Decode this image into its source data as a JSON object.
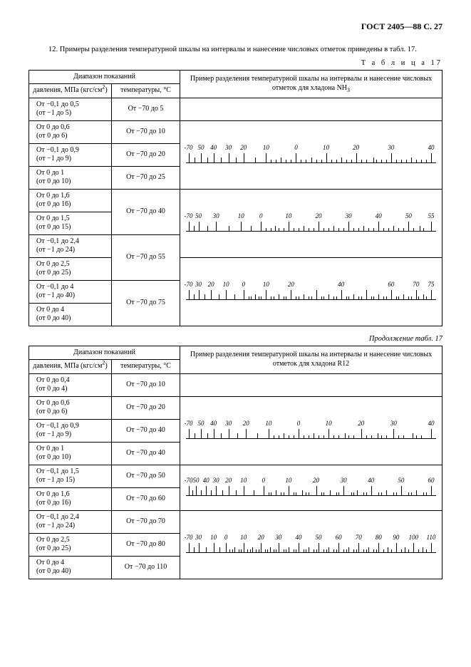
{
  "header": "ГОСТ 2405—88 С. 27",
  "para": "12. Примеры разделения температурной шкалы на интервалы и нанесение числовых отметок приведены в табл. 17.",
  "table_label": "Т а б л и ц а  17",
  "cont_label": "Продолжение табл. 17",
  "head_range": "Диапазон показаний",
  "head_pressure": "давления, МПа (кгс/см²)",
  "head_temp": "температуры, °С",
  "head_example_nh3": "Пример разделения температурной шкалы на интервалы и нанесение числовых отметок для хладона NH₃",
  "head_example_r12": "Пример разделения температурной шкалы на интервалы и нанесение числовых отметок для хладона R12",
  "t1": {
    "rows": [
      {
        "p": "От −0,1 до 0,5\n(от −1 до 5)",
        "t": "От −70 до 5"
      },
      {
        "p": "От 0 до 0,6\n(от 0 до 6)",
        "t": "От −70 до 10"
      },
      {
        "p": "От −0,1 до 0,9\n(от −1 до 9)",
        "t": "От −70 до 20"
      },
      {
        "p": "От 0 до 1\n(от 0 до 10)",
        "t": "От −70 до 25"
      },
      {
        "p": "От 0 до 1,6\n(от 0 до 16)",
        "t": "От −70 до 40",
        "merge_next": true
      },
      {
        "p": "От 0 до 1,5\n(от 0 до 15)"
      },
      {
        "p": "От −0,1 до 2,4\n(от −1 до 24)",
        "t": "От −70 до 55",
        "merge_next": true
      },
      {
        "p": "От 0 до 2,5\n(от 0 до 25)"
      },
      {
        "p": "От −0,1 до 4\n(от −1 до 40)",
        "t": "От −70 до 75",
        "merge_next": true
      },
      {
        "p": "От 0 до 4\n(от 0 до 40)"
      }
    ]
  },
  "t2": {
    "rows": [
      {
        "p": "От 0 до 0,4\n(от 0 до 4)",
        "t": "От −70 до 10"
      },
      {
        "p": "От 0 до 0,6\n(от 0 до 6)",
        "t": "От −70 до 20"
      },
      {
        "p": "От −0,1 до 0,9\n(от −1 до 9)",
        "t": "От −70 до 40"
      },
      {
        "p": "От 0 до 1\n(от 0 до 10)",
        "t": "От −70 до 40"
      },
      {
        "p": "От −0,1 до 1,5\n(от −1 до 15)",
        "t": "От −70 до 50"
      },
      {
        "p": "От 0 до 1,6\n(от 0 до 16)",
        "t": "От −70 до 60"
      },
      {
        "p": "От −0,1 до 2,4\n(от −1 до 24)",
        "t": "От −70 до 70"
      },
      {
        "p": "От 0 до 2,5\n(от 0 до 25)",
        "t": "От −70 до 80"
      },
      {
        "p": "От 0 до 4\n(от 0 до 40)",
        "t": "От −70 до 110"
      }
    ]
  },
  "scales_nh3": [
    {
      "width_pct": 100,
      "labels": [
        "-70",
        "50",
        "40",
        "30",
        "20",
        "10",
        "0",
        "10",
        "20",
        "30",
        "40"
      ],
      "label_pos": [
        1,
        6,
        11,
        17,
        23,
        32,
        44,
        56,
        68,
        82,
        98
      ],
      "major": [
        1,
        6,
        11,
        17,
        23,
        32,
        44,
        56,
        68,
        82,
        98
      ],
      "minor": [
        3.5,
        8.5,
        14,
        20,
        27.5,
        38,
        50,
        62,
        75,
        90
      ],
      "tiny": [
        34,
        36,
        40,
        42,
        46,
        48,
        52,
        54,
        58,
        60,
        64,
        66,
        70,
        72,
        76,
        78,
        80,
        84,
        86,
        88,
        92,
        94,
        96
      ]
    },
    {
      "width_pct": 100,
      "labels": [
        "-70",
        "50",
        "30",
        "10",
        "0",
        "10",
        "20",
        "30",
        "40",
        "50",
        "55"
      ],
      "label_pos": [
        1,
        5,
        12,
        22,
        30,
        41,
        53,
        65,
        77,
        89,
        98
      ],
      "major": [
        1,
        5,
        12,
        22,
        30,
        41,
        53,
        65,
        77,
        89,
        98
      ],
      "minor": [
        3,
        8.5,
        17,
        26,
        35.5,
        47,
        59,
        71,
        83,
        93.5
      ],
      "tiny": [
        32,
        34,
        37,
        39,
        43,
        45,
        49,
        51,
        55,
        57,
        61,
        63,
        67,
        69,
        73,
        75,
        79,
        81,
        85,
        87,
        91,
        95
      ]
    },
    {
      "width_pct": 100,
      "labels": [
        "-70",
        "30",
        "20",
        "10",
        "0",
        "10",
        "20",
        "40",
        "60",
        "70",
        "75"
      ],
      "label_pos": [
        1,
        5,
        10,
        16,
        23,
        32,
        42,
        62,
        82,
        92,
        98
      ],
      "major": [
        1,
        5,
        10,
        16,
        23,
        32,
        42,
        52,
        62,
        72,
        82,
        92,
        98
      ],
      "minor": [
        3,
        7.5,
        13,
        19.5,
        27.5,
        37,
        47,
        57,
        67,
        77,
        87,
        95
      ],
      "tiny": [
        25,
        26,
        29,
        30,
        34,
        35,
        39,
        40,
        44,
        45,
        49,
        50,
        54,
        55,
        59,
        60,
        64,
        65,
        69,
        70,
        74,
        75,
        79,
        80,
        84,
        85,
        89,
        90,
        93,
        96
      ]
    }
  ],
  "scales_r12": [
    {
      "width_pct": 100,
      "labels": [
        "-70",
        "50",
        "40",
        "30",
        "20",
        "10",
        "0",
        "10",
        "20",
        "30",
        "40"
      ],
      "label_pos": [
        1,
        6,
        11,
        17,
        24,
        33,
        45,
        57,
        70,
        83,
        98
      ],
      "major": [
        1,
        6,
        11,
        17,
        24,
        33,
        45,
        57,
        70,
        83,
        98
      ],
      "minor": [
        3.5,
        8.5,
        14,
        20.5,
        28.5,
        39,
        51,
        63.5,
        76.5,
        90.5
      ],
      "tiny": [
        35,
        37,
        41,
        43,
        47,
        49,
        53,
        55,
        59,
        61,
        65,
        67,
        72,
        74,
        78,
        80,
        85,
        87,
        92,
        94
      ]
    },
    {
      "width_pct": 100,
      "labels": [
        "-70",
        "50",
        "40",
        "30",
        "20",
        "10",
        "0",
        "10",
        "20",
        "30",
        "40",
        "50",
        "60"
      ],
      "label_pos": [
        1,
        4,
        8,
        12,
        17,
        23,
        31,
        41,
        52,
        63,
        74,
        86,
        98
      ],
      "major": [
        1,
        4,
        8,
        12,
        17,
        23,
        31,
        41,
        52,
        63,
        74,
        86,
        98
      ],
      "minor": [
        2.5,
        6,
        10,
        14.5,
        20,
        27,
        36,
        46.5,
        57.5,
        68.5,
        80,
        92
      ],
      "tiny": [
        33,
        34,
        38,
        39,
        43,
        44,
        48,
        49,
        54,
        55,
        60,
        61,
        66,
        67,
        71,
        72,
        77,
        78,
        83,
        84,
        89,
        90,
        95,
        96
      ]
    },
    {
      "width_pct": 100,
      "labels": [
        "-70",
        "30",
        "10",
        "0",
        "10",
        "20",
        "30",
        "40",
        "50",
        "60",
        "70",
        "80",
        "90",
        "100",
        "110"
      ],
      "label_pos": [
        1,
        5,
        11,
        16,
        23,
        30,
        37,
        45,
        53,
        61,
        69,
        77,
        84,
        91,
        98
      ],
      "major": [
        1,
        5,
        11,
        16,
        23,
        30,
        37,
        45,
        53,
        61,
        69,
        77,
        84,
        91,
        98
      ],
      "minor": [
        3,
        8,
        13.5,
        19.5,
        26.5,
        33.5,
        41,
        49,
        57,
        65,
        73,
        80.5,
        87.5,
        94.5
      ],
      "tiny": [
        17.5,
        18.5,
        21,
        22,
        24.5,
        25.5,
        28,
        29,
        31.5,
        32.5,
        35,
        36,
        39,
        40,
        43,
        44,
        47,
        48,
        51,
        52,
        55,
        56,
        59,
        60,
        63,
        64,
        67,
        68,
        71,
        72,
        75,
        76,
        79,
        82,
        86,
        89,
        93,
        96
      ]
    }
  ]
}
